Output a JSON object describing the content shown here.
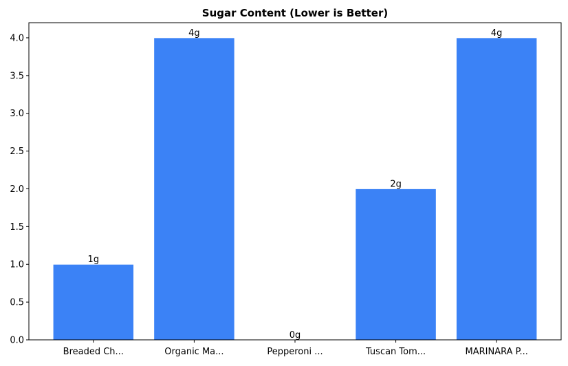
{
  "chart_data": {
    "type": "bar",
    "title": "Sugar Content (Lower is Better)",
    "xlabel": "",
    "ylabel": "",
    "categories": [
      "Breaded Ch...",
      "Organic Ma...",
      "Pepperoni ...",
      "Tuscan Tom...",
      "MARINARA P..."
    ],
    "values": [
      1,
      4,
      0,
      2,
      4
    ],
    "data_labels": [
      "1g",
      "4g",
      "0g",
      "2g",
      "4g"
    ],
    "ylim": [
      0,
      4.2
    ],
    "yticks": [
      0.0,
      0.5,
      1.0,
      1.5,
      2.0,
      2.5,
      3.0,
      3.5,
      4.0
    ],
    "ytick_labels": [
      "0.0",
      "0.5",
      "1.0",
      "1.5",
      "2.0",
      "2.5",
      "3.0",
      "3.5",
      "4.0"
    ],
    "grid": false,
    "bar_color": "#3b82f6"
  }
}
